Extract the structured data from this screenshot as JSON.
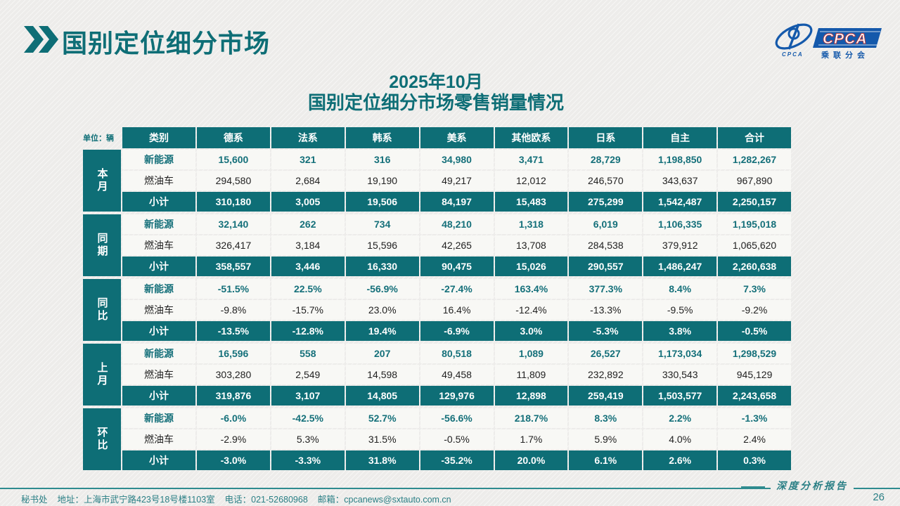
{
  "colors": {
    "teal": "#0E6E76",
    "teal_text": "#15707A",
    "footer_teal": "#2A7F85",
    "light_row": "#F8F8F5",
    "page_bg": "#EFEEEC",
    "logo_blue": "#1459AB",
    "logo_red": "#C23B3B",
    "body_text": "#222222"
  },
  "header": {
    "title": "国别定位细分市场",
    "subtitle_line1": "2025年10月",
    "subtitle_line2": "国别定位细分市场零售销量情况",
    "logo": {
      "name": "CPCA",
      "mark": "CPCA",
      "subtitle": "乘联分会"
    }
  },
  "table": {
    "unit_label": "单位：辆",
    "columns": [
      "类别",
      "德系",
      "法系",
      "韩系",
      "美系",
      "其他欧系",
      "日系",
      "自主",
      "合计"
    ],
    "groups": [
      {
        "label": "本月",
        "rows": [
          {
            "label": "新能源",
            "values": [
              "15,600",
              "321",
              "316",
              "34,980",
              "3,471",
              "28,729",
              "1,198,850",
              "1,282,267"
            ]
          },
          {
            "label": "燃油车",
            "values": [
              "294,580",
              "2,684",
              "19,190",
              "49,217",
              "12,012",
              "246,570",
              "343,637",
              "967,890"
            ]
          },
          {
            "label": "小计",
            "values": [
              "310,180",
              "3,005",
              "19,506",
              "84,197",
              "15,483",
              "275,299",
              "1,542,487",
              "2,250,157"
            ]
          }
        ]
      },
      {
        "label": "同期",
        "rows": [
          {
            "label": "新能源",
            "values": [
              "32,140",
              "262",
              "734",
              "48,210",
              "1,318",
              "6,019",
              "1,106,335",
              "1,195,018"
            ]
          },
          {
            "label": "燃油车",
            "values": [
              "326,417",
              "3,184",
              "15,596",
              "42,265",
              "13,708",
              "284,538",
              "379,912",
              "1,065,620"
            ]
          },
          {
            "label": "小计",
            "values": [
              "358,557",
              "3,446",
              "16,330",
              "90,475",
              "15,026",
              "290,557",
              "1,486,247",
              "2,260,638"
            ]
          }
        ]
      },
      {
        "label": "同比",
        "rows": [
          {
            "label": "新能源",
            "values": [
              "-51.5%",
              "22.5%",
              "-56.9%",
              "-27.4%",
              "163.4%",
              "377.3%",
              "8.4%",
              "7.3%"
            ]
          },
          {
            "label": "燃油车",
            "values": [
              "-9.8%",
              "-15.7%",
              "23.0%",
              "16.4%",
              "-12.4%",
              "-13.3%",
              "-9.5%",
              "-9.2%"
            ]
          },
          {
            "label": "小计",
            "values": [
              "-13.5%",
              "-12.8%",
              "19.4%",
              "-6.9%",
              "3.0%",
              "-5.3%",
              "3.8%",
              "-0.5%"
            ]
          }
        ]
      },
      {
        "label": "上月",
        "rows": [
          {
            "label": "新能源",
            "values": [
              "16,596",
              "558",
              "207",
              "80,518",
              "1,089",
              "26,527",
              "1,173,034",
              "1,298,529"
            ]
          },
          {
            "label": "燃油车",
            "values": [
              "303,280",
              "2,549",
              "14,598",
              "49,458",
              "11,809",
              "232,892",
              "330,543",
              "945,129"
            ]
          },
          {
            "label": "小计",
            "values": [
              "319,876",
              "3,107",
              "14,805",
              "129,976",
              "12,898",
              "259,419",
              "1,503,577",
              "2,243,658"
            ]
          }
        ]
      },
      {
        "label": "环比",
        "rows": [
          {
            "label": "新能源",
            "values": [
              "-6.0%",
              "-42.5%",
              "52.7%",
              "-56.6%",
              "218.7%",
              "8.3%",
              "2.2%",
              "-1.3%"
            ]
          },
          {
            "label": "燃油车",
            "values": [
              "-2.9%",
              "5.3%",
              "31.5%",
              "-0.5%",
              "1.7%",
              "5.9%",
              "4.0%",
              "2.4%"
            ]
          },
          {
            "label": "小计",
            "values": [
              "-3.0%",
              "-3.3%",
              "31.8%",
              "-35.2%",
              "20.0%",
              "6.1%",
              "2.6%",
              "0.3%"
            ]
          }
        ]
      }
    ]
  },
  "footer": {
    "dept": "秘书处",
    "address": "地址：上海市武宁路423号18号楼1103室",
    "phone": "电话：021-52680968",
    "email": "邮箱：cpcanews@sxtauto.com.cn",
    "report_label": "深度分析报告",
    "page_number": "26"
  }
}
